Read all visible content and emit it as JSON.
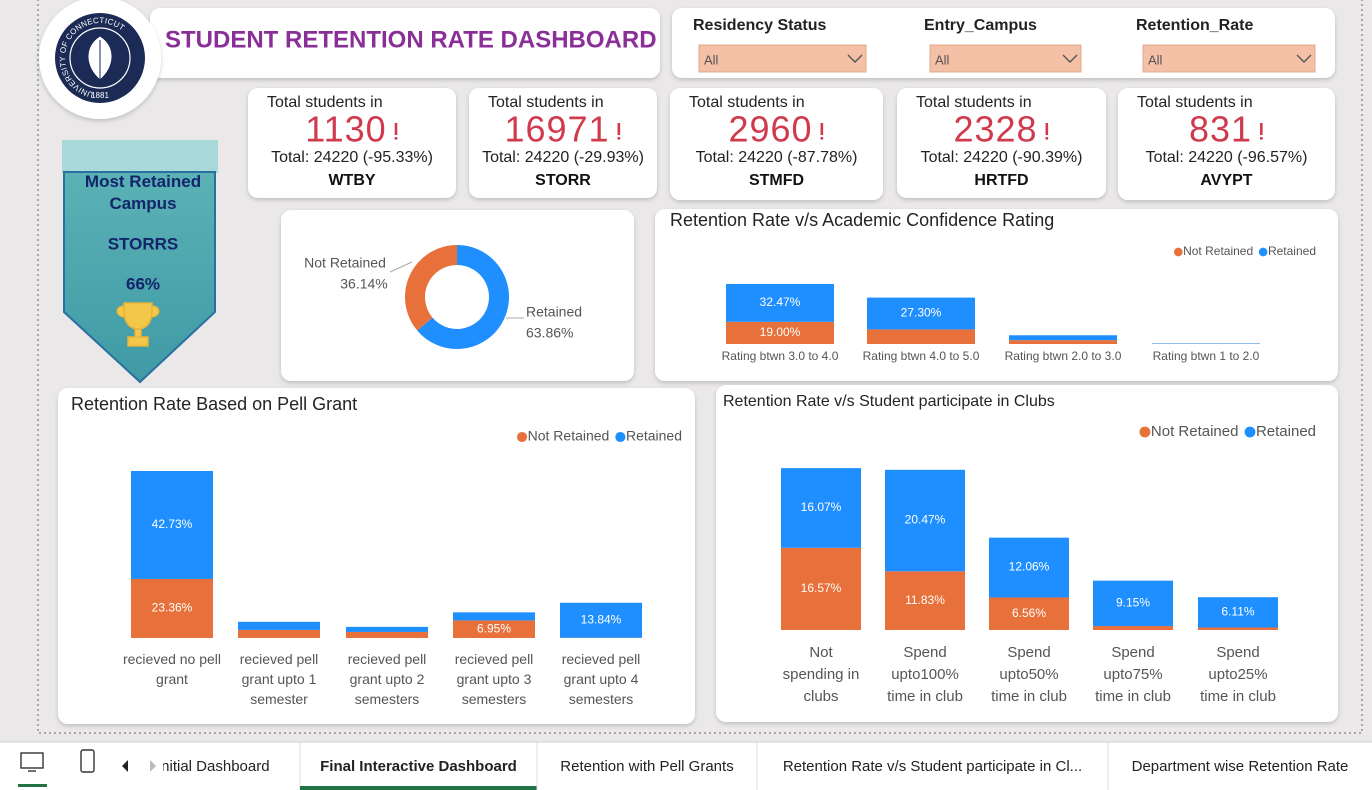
{
  "header": {
    "title": "STUDENT RETENTION RATE DASHBOARD",
    "logo_text": "UNIVERSITY OF CONNECTICUT",
    "logo_year": "1881"
  },
  "filters": [
    {
      "label": "Residency Status",
      "value": "All"
    },
    {
      "label": "Entry_Campus",
      "value": "All"
    },
    {
      "label": "Retention_Rate",
      "value": "All"
    }
  ],
  "kpis": [
    {
      "label": "Total students in",
      "value": 1130,
      "total": "Total: 24220 (-95.33%)",
      "campus": "WTBY"
    },
    {
      "label": "Total students in",
      "value": 16971,
      "total": "Total: 24220 (-29.93%)",
      "campus": "STORR"
    },
    {
      "label": "Total students in",
      "value": 2960,
      "total": "Total: 24220 (-87.78%)",
      "campus": "STMFD"
    },
    {
      "label": "Total students in",
      "value": 2328,
      "total": "Total: 24220 (-90.39%)",
      "campus": "HRTFD"
    },
    {
      "label": "Total students in",
      "value": 831,
      "total": "Total: 24220 (-96.57%)",
      "campus": "AVYPT"
    }
  ],
  "badge": {
    "title": "Most Retained Campus",
    "campus": "STORRS",
    "value": "66%"
  },
  "chart_data": [
    {
      "type": "donut",
      "categories": [
        "Not Retained",
        "Retained"
      ],
      "values": [
        36.14,
        63.86
      ],
      "value_labels": [
        "36.14%",
        "63.86%"
      ],
      "colors": [
        "#e8703a",
        "#1f8fff"
      ]
    },
    {
      "type": "stacked_bar",
      "title": "Retention Rate v/s Academic Confidence Rating",
      "legend": "top-right",
      "categories": [
        "Rating btwn 3.0 to 4.0",
        "Rating btwn 4.0 to 5.0",
        "Rating btwn 2.0 to 3.0",
        "Rating btwn 1 to 2.0"
      ],
      "series": [
        {
          "name": "Not Retained",
          "color": "#e8703a",
          "values": [
            19.0,
            12.5,
            3.3,
            0.2
          ],
          "value_labels": [
            "19.00%",
            null,
            null,
            null
          ]
        },
        {
          "name": "Retained",
          "color": "#1f8fff",
          "values": [
            32.47,
            27.3,
            4.2,
            0.4
          ],
          "value_labels": [
            "32.47%",
            "27.30%",
            null,
            null
          ]
        }
      ]
    },
    {
      "type": "stacked_bar",
      "title": "Retention Rate Based on Pell Grant",
      "legend": "top-right",
      "categories": [
        "recieved no pell grant",
        "recieved pell grant upto 1 semester",
        "recieved pell grant upto 2 semesters",
        "recieved pell grant upto 3 semesters",
        "recieved pell grant upto 4 semesters"
      ],
      "series": [
        {
          "name": "Not Retained",
          "color": "#e8703a",
          "values": [
            23.36,
            3.2,
            2.4,
            6.95,
            0.1
          ],
          "value_labels": [
            "23.36%",
            null,
            null,
            "6.95%",
            null
          ]
        },
        {
          "name": "Retained",
          "color": "#1f8fff",
          "values": [
            42.73,
            3.2,
            2.0,
            3.2,
            13.84
          ],
          "value_labels": [
            "42.73%",
            null,
            null,
            null,
            "13.84%"
          ]
        }
      ]
    },
    {
      "type": "stacked_bar",
      "title": "Retention Rate v/s Student participate in Clubs",
      "legend": "top-right",
      "categories": [
        "Not spending in clubs",
        "Spend upto100% time in club",
        "Spend upto50% time in club",
        "Spend upto75% time in club",
        "Spend upto25% time in club"
      ],
      "series": [
        {
          "name": "Not Retained",
          "color": "#e8703a",
          "values": [
            16.57,
            11.83,
            6.56,
            0.8,
            0.5
          ],
          "value_labels": [
            "16.57%",
            "11.83%",
            "6.56%",
            null,
            null
          ]
        },
        {
          "name": "Retained",
          "color": "#1f8fff",
          "values": [
            16.07,
            20.47,
            12.06,
            9.15,
            6.11
          ],
          "value_labels": [
            "16.07%",
            "20.47%",
            "12.06%",
            "9.15%",
            "6.11%"
          ]
        }
      ]
    }
  ],
  "tabs": [
    "Initial Dashboard",
    "Final Interactive Dashboard",
    "Retention with Pell Grants",
    "Retention Rate v/s Student participate in Cl...",
    "Department wise Retention Rate"
  ]
}
